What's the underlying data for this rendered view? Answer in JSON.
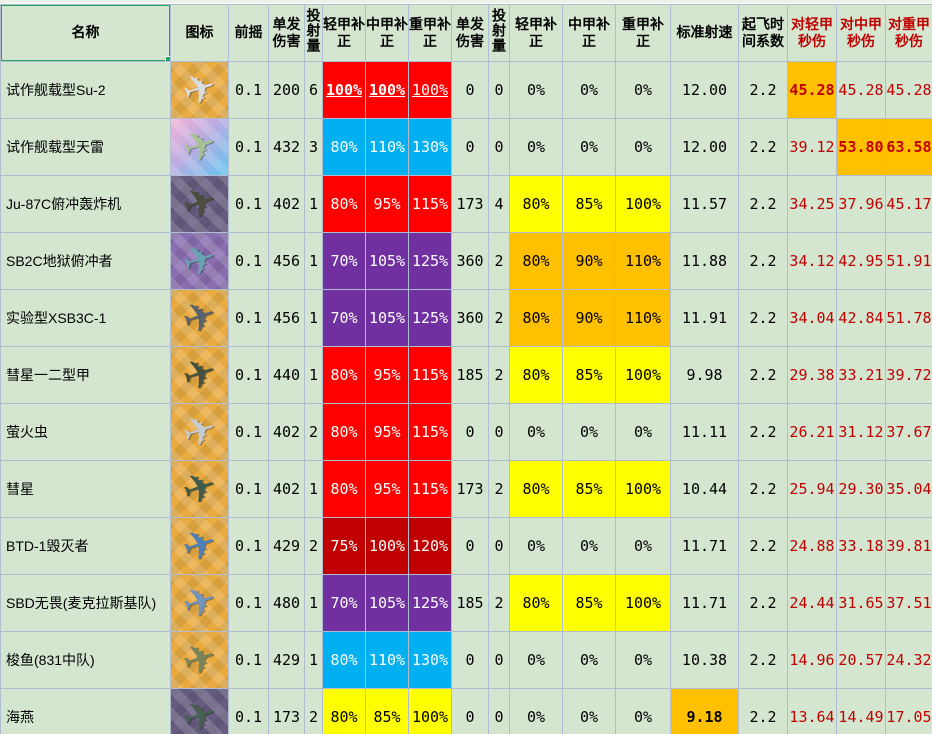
{
  "icon_glyph": "✈",
  "colors": {
    "cell_bg": "#d4e6d0",
    "grid": "#afbcd2",
    "selection_green": "#21a366",
    "red": "#ff0000",
    "dark_red": "#c00000",
    "purple": "#7030a0",
    "blue": "#00b0f0",
    "yellow": "#ffff00",
    "orange": "#ffc000",
    "dps_text": "#c00000"
  },
  "table": {
    "headers": [
      "名称",
      "图标",
      "前摇",
      "单发伤害",
      "投射量",
      "轻甲补正",
      "中甲补正",
      "重甲补正",
      "单发伤害",
      "投射量",
      "轻甲补正",
      "中甲补正",
      "重甲补正",
      "标准射速",
      "起飞时间系数",
      "对轻甲秒伤",
      "对中甲秒伤",
      "对重甲秒伤"
    ],
    "rows": [
      {
        "name": "试作舰载型Su-2",
        "windup": "0.1",
        "dmg1": "200",
        "cnt1": "6",
        "light1": "100%",
        "mid1": "100%",
        "heavy1": "100%",
        "dmg2": "0",
        "cnt2": "0",
        "light2": "0%",
        "mid2": "0%",
        "heavy2": "0%",
        "rof": "12.00",
        "takeoff": "2.2",
        "dps_light": "45.28",
        "dps_mid": "45.28",
        "dps_heavy": "45.28",
        "g1": "red",
        "g1_link": true,
        "g2": "none",
        "hl": [
          "dps_light"
        ],
        "icon": {
          "bg": "gold",
          "plane": "#d9dde1"
        }
      },
      {
        "name": "试作舰载型天雷",
        "windup": "0.1",
        "dmg1": "432",
        "cnt1": "3",
        "light1": "80%",
        "mid1": "110%",
        "heavy1": "130%",
        "dmg2": "0",
        "cnt2": "0",
        "light2": "0%",
        "mid2": "0%",
        "heavy2": "0%",
        "rof": "12.00",
        "takeoff": "2.2",
        "dps_light": "39.12",
        "dps_mid": "53.80",
        "dps_heavy": "63.58",
        "g1": "blue",
        "g2": "none",
        "hl": [
          "dps_mid",
          "dps_heavy"
        ],
        "icon": {
          "bg": "rainbow",
          "plane": "#a9c295"
        }
      },
      {
        "name": "Ju-87C俯冲轰炸机",
        "windup": "0.1",
        "dmg1": "402",
        "cnt1": "1",
        "light1": "80%",
        "mid1": "95%",
        "heavy1": "115%",
        "dmg2": "173",
        "cnt2": "4",
        "light2": "80%",
        "mid2": "85%",
        "heavy2": "100%",
        "rof": "11.57",
        "takeoff": "2.2",
        "dps_light": "34.25",
        "dps_mid": "37.96",
        "dps_heavy": "45.17",
        "g1": "red",
        "g2": "yellow",
        "hl": [],
        "icon": {
          "bg": "darkpurple",
          "plane": "#4c4f3e"
        }
      },
      {
        "name": "SB2C地狱俯冲者",
        "windup": "0.1",
        "dmg1": "456",
        "cnt1": "1",
        "light1": "70%",
        "mid1": "105%",
        "heavy1": "125%",
        "dmg2": "360",
        "cnt2": "2",
        "light2": "80%",
        "mid2": "90%",
        "heavy2": "110%",
        "rof": "11.88",
        "takeoff": "2.2",
        "dps_light": "34.12",
        "dps_mid": "42.95",
        "dps_heavy": "51.91",
        "g1": "purple",
        "g2": "orange",
        "hl": [],
        "icon": {
          "bg": "purple",
          "plane": "#69a2b2"
        }
      },
      {
        "name": "实验型XSB3C-1",
        "windup": "0.1",
        "dmg1": "456",
        "cnt1": "1",
        "light1": "70%",
        "mid1": "105%",
        "heavy1": "125%",
        "dmg2": "360",
        "cnt2": "2",
        "light2": "80%",
        "mid2": "90%",
        "heavy2": "110%",
        "rof": "11.91",
        "takeoff": "2.2",
        "dps_light": "34.04",
        "dps_mid": "42.84",
        "dps_heavy": "51.78",
        "g1": "purple",
        "g2": "orange",
        "hl": [],
        "icon": {
          "bg": "gold",
          "plane": "#59636e"
        }
      },
      {
        "name": "彗星一二型甲",
        "windup": "0.1",
        "dmg1": "440",
        "cnt1": "1",
        "light1": "80%",
        "mid1": "95%",
        "heavy1": "115%",
        "dmg2": "185",
        "cnt2": "2",
        "light2": "80%",
        "mid2": "85%",
        "heavy2": "100%",
        "rof": "9.98",
        "takeoff": "2.2",
        "dps_light": "29.38",
        "dps_mid": "33.21",
        "dps_heavy": "39.72",
        "g1": "red",
        "g2": "yellow",
        "hl": [],
        "icon": {
          "bg": "gold",
          "plane": "#45503f"
        }
      },
      {
        "name": "萤火虫",
        "windup": "0.1",
        "dmg1": "402",
        "cnt1": "2",
        "light1": "80%",
        "mid1": "95%",
        "heavy1": "115%",
        "dmg2": "0",
        "cnt2": "0",
        "light2": "0%",
        "mid2": "0%",
        "heavy2": "0%",
        "rof": "11.11",
        "takeoff": "2.2",
        "dps_light": "26.21",
        "dps_mid": "31.12",
        "dps_heavy": "37.67",
        "g1": "red",
        "g2": "none",
        "hl": [],
        "icon": {
          "bg": "gold",
          "plane": "#c7ccd2"
        }
      },
      {
        "name": "彗星",
        "windup": "0.1",
        "dmg1": "402",
        "cnt1": "1",
        "light1": "80%",
        "mid1": "95%",
        "heavy1": "115%",
        "dmg2": "173",
        "cnt2": "2",
        "light2": "80%",
        "mid2": "85%",
        "heavy2": "100%",
        "rof": "10.44",
        "takeoff": "2.2",
        "dps_light": "25.94",
        "dps_mid": "29.30",
        "dps_heavy": "35.04",
        "g1": "red",
        "g2": "yellow",
        "hl": [],
        "icon": {
          "bg": "gold",
          "plane": "#3d5a4a"
        }
      },
      {
        "name": "BTD-1毁灭者",
        "windup": "0.1",
        "dmg1": "429",
        "cnt1": "2",
        "light1": "75%",
        "mid1": "100%",
        "heavy1": "120%",
        "dmg2": "0",
        "cnt2": "0",
        "light2": "0%",
        "mid2": "0%",
        "heavy2": "0%",
        "rof": "11.71",
        "takeoff": "2.2",
        "dps_light": "24.88",
        "dps_mid": "33.18",
        "dps_heavy": "39.81",
        "g1": "darkred",
        "g2": "none",
        "hl": [],
        "icon": {
          "bg": "gold",
          "plane": "#4d7fba"
        }
      },
      {
        "name": "SBD无畏(麦克拉斯基队)",
        "windup": "0.1",
        "dmg1": "480",
        "cnt1": "1",
        "light1": "70%",
        "mid1": "105%",
        "heavy1": "125%",
        "dmg2": "185",
        "cnt2": "2",
        "light2": "80%",
        "mid2": "85%",
        "heavy2": "100%",
        "rof": "11.71",
        "takeoff": "2.2",
        "dps_light": "24.44",
        "dps_mid": "31.65",
        "dps_heavy": "37.51",
        "g1": "purple",
        "g2": "yellow",
        "hl": [],
        "icon": {
          "bg": "gold",
          "plane": "#6f94c0"
        }
      },
      {
        "name": "梭鱼(831中队)",
        "windup": "0.1",
        "dmg1": "429",
        "cnt1": "1",
        "light1": "80%",
        "mid1": "110%",
        "heavy1": "130%",
        "dmg2": "0",
        "cnt2": "0",
        "light2": "0%",
        "mid2": "0%",
        "heavy2": "0%",
        "rof": "10.38",
        "takeoff": "2.2",
        "dps_light": "14.96",
        "dps_mid": "20.57",
        "dps_heavy": "24.32",
        "g1": "blue",
        "g2": "none",
        "hl": [],
        "icon": {
          "bg": "gold",
          "plane": "#74855b"
        }
      },
      {
        "name": "海燕",
        "windup": "0.1",
        "dmg1": "173",
        "cnt1": "2",
        "light1": "80%",
        "mid1": "85%",
        "heavy1": "100%",
        "dmg2": "0",
        "cnt2": "0",
        "light2": "0%",
        "mid2": "0%",
        "heavy2": "0%",
        "rof": "9.18",
        "takeoff": "2.2",
        "dps_light": "13.64",
        "dps_mid": "14.49",
        "dps_heavy": "17.05",
        "g1": "yellow",
        "g2": "none",
        "hl": [
          "rof"
        ],
        "icon": {
          "bg": "darkpurple",
          "plane": "#48604f"
        }
      }
    ]
  }
}
